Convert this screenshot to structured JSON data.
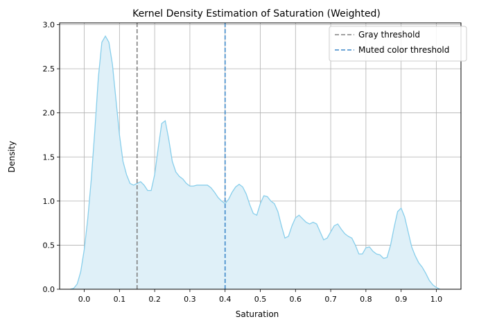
{
  "chart_data": {
    "type": "area",
    "title": "Kernel Density Estimation of Saturation (Weighted)",
    "xlabel": "Saturation",
    "ylabel": "Density",
    "xlim": [
      -0.07,
      1.07
    ],
    "ylim": [
      0,
      3.02
    ],
    "xticks": [
      "0.0",
      "0.1",
      "0.2",
      "0.3",
      "0.4",
      "0.5",
      "0.6",
      "0.7",
      "0.8",
      "0.9",
      "1.0"
    ],
    "yticks": [
      "0.0",
      "0.5",
      "1.0",
      "1.5",
      "2.0",
      "2.5",
      "3.0"
    ],
    "grid": true,
    "legend_position": "top-right",
    "colors": {
      "kde_line": "#87ceeb",
      "kde_fill": "#dff0f8",
      "gray_threshold": "#808080",
      "muted_threshold": "#3b87c8"
    },
    "series": [
      {
        "x": [
          -0.04,
          -0.03,
          -0.02,
          -0.01,
          0.0,
          0.01,
          0.02,
          0.03,
          0.04,
          0.05,
          0.06,
          0.07,
          0.08,
          0.09,
          0.1,
          0.11,
          0.12,
          0.13,
          0.14,
          0.15,
          0.16,
          0.17,
          0.18,
          0.19,
          0.2,
          0.21,
          0.22,
          0.23,
          0.24,
          0.25,
          0.26,
          0.27,
          0.28,
          0.29,
          0.3,
          0.31,
          0.32,
          0.33,
          0.34,
          0.35,
          0.36,
          0.37,
          0.38,
          0.39,
          0.4,
          0.41,
          0.42,
          0.43,
          0.44,
          0.45,
          0.46,
          0.47,
          0.48,
          0.49,
          0.5,
          0.51,
          0.52,
          0.53,
          0.54,
          0.55,
          0.56,
          0.57,
          0.58,
          0.59,
          0.6,
          0.61,
          0.62,
          0.63,
          0.64,
          0.65,
          0.66,
          0.67,
          0.68,
          0.69,
          0.7,
          0.71,
          0.72,
          0.73,
          0.74,
          0.75,
          0.76,
          0.77,
          0.78,
          0.79,
          0.8,
          0.81,
          0.82,
          0.83,
          0.84,
          0.85,
          0.86,
          0.87,
          0.88,
          0.89,
          0.9,
          0.91,
          0.92,
          0.93,
          0.94,
          0.95,
          0.96,
          0.97,
          0.98,
          0.99,
          1.0,
          1.01
        ],
        "y": [
          0.0,
          0.01,
          0.06,
          0.2,
          0.45,
          0.8,
          1.25,
          1.8,
          2.4,
          2.8,
          2.87,
          2.8,
          2.55,
          2.15,
          1.75,
          1.45,
          1.3,
          1.2,
          1.18,
          1.2,
          1.22,
          1.18,
          1.12,
          1.12,
          1.3,
          1.6,
          1.88,
          1.91,
          1.7,
          1.45,
          1.33,
          1.28,
          1.25,
          1.2,
          1.17,
          1.17,
          1.18,
          1.18,
          1.18,
          1.18,
          1.15,
          1.1,
          1.04,
          1.0,
          0.97,
          1.02,
          1.1,
          1.16,
          1.19,
          1.16,
          1.08,
          0.96,
          0.86,
          0.84,
          0.97,
          1.06,
          1.05,
          1.0,
          0.97,
          0.88,
          0.72,
          0.58,
          0.6,
          0.72,
          0.81,
          0.84,
          0.8,
          0.76,
          0.74,
          0.76,
          0.74,
          0.65,
          0.56,
          0.58,
          0.65,
          0.72,
          0.74,
          0.68,
          0.63,
          0.6,
          0.58,
          0.5,
          0.4,
          0.4,
          0.47,
          0.48,
          0.43,
          0.4,
          0.39,
          0.35,
          0.36,
          0.5,
          0.7,
          0.88,
          0.92,
          0.82,
          0.65,
          0.48,
          0.38,
          0.3,
          0.25,
          0.18,
          0.1,
          0.05,
          0.02,
          0.0
        ]
      }
    ],
    "thresholds": [
      {
        "name": "Gray threshold",
        "x": 0.15,
        "style": "dashed"
      },
      {
        "name": "Muted color threshold",
        "x": 0.4,
        "style": "dashed"
      }
    ]
  }
}
